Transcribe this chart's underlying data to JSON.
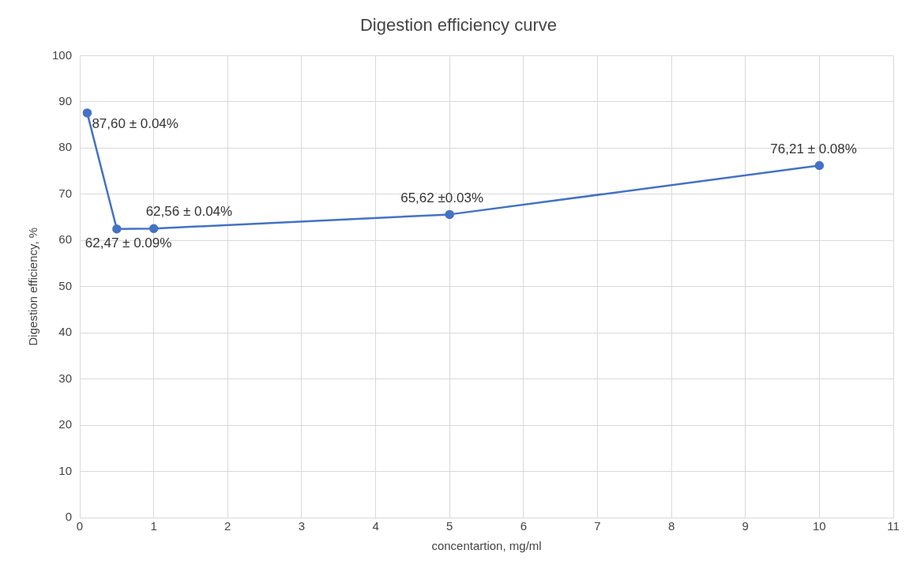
{
  "chart_data": {
    "type": "line",
    "title": "Digestion efficiency curve",
    "xlabel": "concentartion, mg/ml",
    "ylabel": "Digestion efficiency, %",
    "x": [
      0.1,
      0.5,
      1,
      5,
      10
    ],
    "series": [
      {
        "color": "#4472c4",
        "values": [
          87.6,
          62.47,
          62.56,
          65.62,
          76.21
        ],
        "value_labels": [
          "87,60 ± 0.04%",
          "62,47 ± 0.09%",
          "62,56 ± 0.04%",
          "65,62 ±0.03%",
          "76,21 ± 0.08%"
        ]
      }
    ],
    "xlim": [
      0,
      11
    ],
    "xticks": [
      0,
      1,
      2,
      3,
      4,
      5,
      6,
      7,
      8,
      9,
      10,
      11
    ],
    "ylim": [
      0,
      100
    ],
    "yticks": [
      0,
      10,
      20,
      30,
      40,
      50,
      60,
      70,
      80,
      90,
      100
    ],
    "grid": true,
    "legend": false,
    "marker": "circle",
    "line_style": "solid"
  }
}
